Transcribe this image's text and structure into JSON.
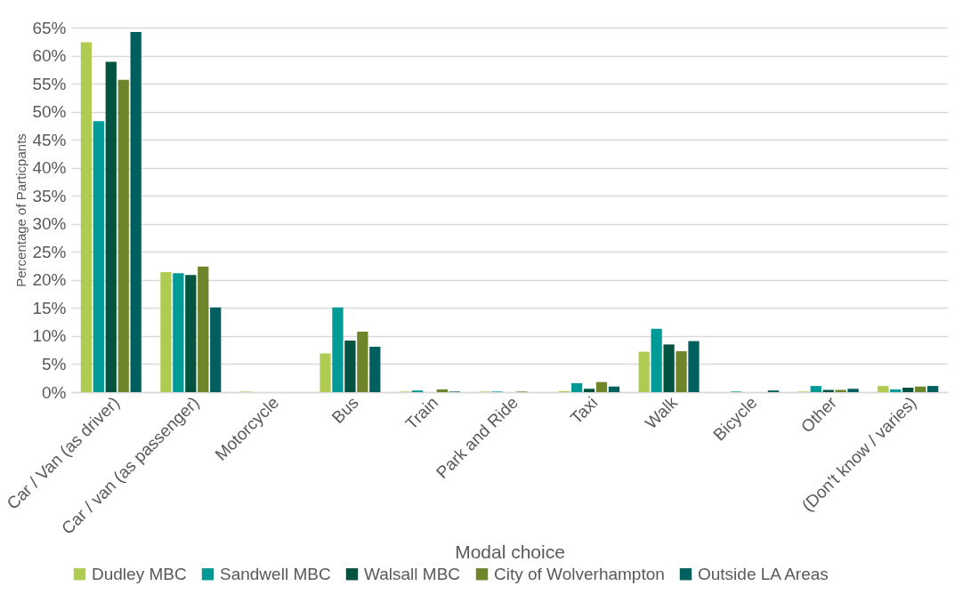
{
  "chart_data": {
    "type": "bar",
    "xlabel": "Modal choice",
    "ylabel": "Percentage of Particpants",
    "categories": [
      "Car / Van (as driver)",
      "Car / van (as passenger)",
      "Motorcycle",
      "Bus",
      "Train",
      "Park and Ride",
      "Taxi",
      "Walk",
      "Bicycle",
      "Other",
      "(Don't know / varies)"
    ],
    "series": [
      {
        "name": "Dudley MBC",
        "color": "#b0cb52",
        "values": [
          62.4,
          21.4,
          0.1,
          6.9,
          0.1,
          0.1,
          0.2,
          7.2,
          0,
          0.1,
          1.1
        ]
      },
      {
        "name": "Sandwell MBC",
        "color": "#009a97",
        "values": [
          48.3,
          21.2,
          0,
          15.1,
          0.3,
          0.1,
          1.6,
          11.3,
          0.1,
          1.1,
          0.5
        ]
      },
      {
        "name": "Walsall MBC",
        "color": "#02533f",
        "values": [
          58.9,
          20.9,
          0,
          9.2,
          0,
          0,
          0.6,
          8.5,
          0,
          0.4,
          0.8
        ]
      },
      {
        "name": "City of Wolverhampton",
        "color": "#6e852a",
        "values": [
          55.7,
          22.4,
          0,
          10.8,
          0.5,
          0.1,
          1.8,
          7.3,
          0,
          0.4,
          1.0
        ]
      },
      {
        "name": "Outside LA Areas",
        "color": "#005f5f",
        "values": [
          64.2,
          15.1,
          0,
          8.1,
          0.1,
          0,
          1.0,
          9.1,
          0.3,
          0.6,
          1.1
        ]
      }
    ],
    "ylim": [
      0,
      65
    ],
    "yticks": [
      {
        "value": 0,
        "label": "0%"
      },
      {
        "value": 5,
        "label": "5%"
      },
      {
        "value": 10,
        "label": "10%"
      },
      {
        "value": 15,
        "label": "15%"
      },
      {
        "value": 20,
        "label": "20%"
      },
      {
        "value": 25,
        "label": "25%"
      },
      {
        "value": 30,
        "label": "30%"
      },
      {
        "value": 35,
        "label": "35%"
      },
      {
        "value": 40,
        "label": "40%"
      },
      {
        "value": 45,
        "label": "45%"
      },
      {
        "value": 50,
        "label": "50%"
      },
      {
        "value": 55,
        "label": "55%"
      },
      {
        "value": 60,
        "label": "60%"
      },
      {
        "value": 65,
        "label": "65%"
      }
    ],
    "grid": "y",
    "legend": "bottom"
  }
}
